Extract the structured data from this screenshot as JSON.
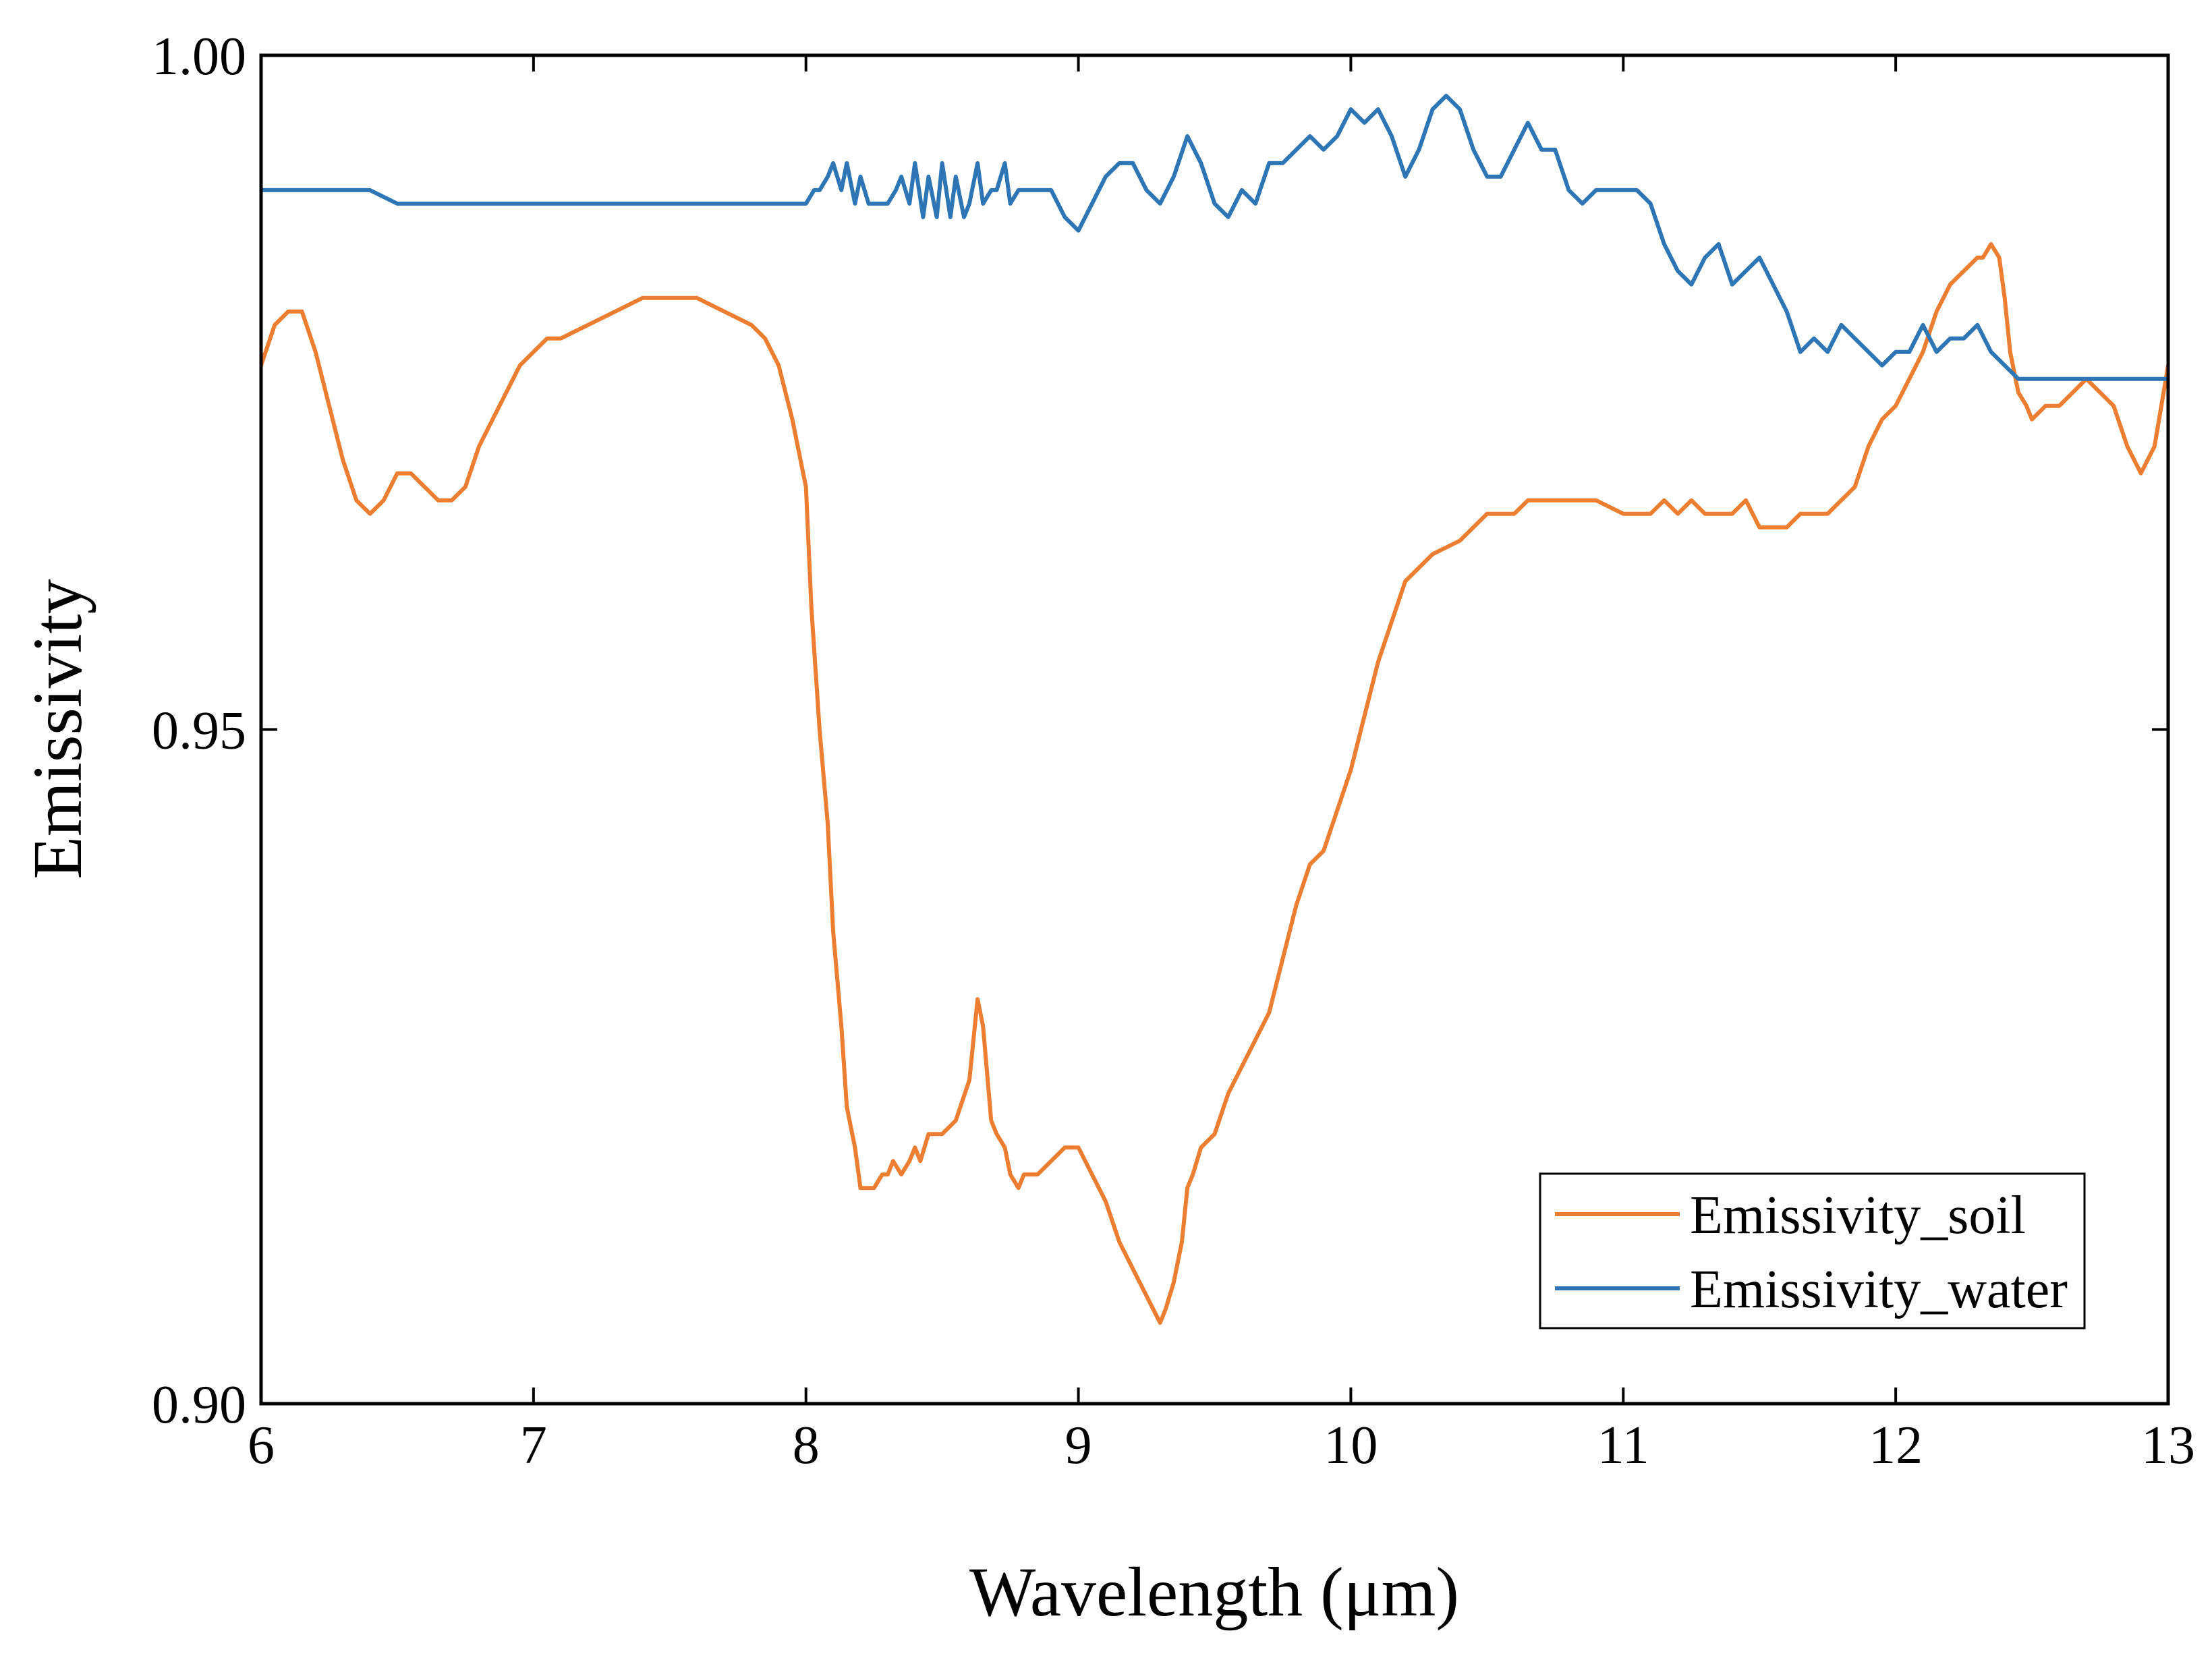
{
  "chart_data": {
    "type": "line",
    "title": "",
    "xlabel": "Wavelength (μm)",
    "ylabel": "Emissivity",
    "xlim": [
      6,
      13
    ],
    "ylim": [
      0.9,
      1.0
    ],
    "xticks": [
      6,
      7,
      8,
      9,
      10,
      11,
      12,
      13
    ],
    "xtick_labels": [
      "6",
      "7",
      "8",
      "9",
      "10",
      "11",
      "12",
      "13"
    ],
    "yticks": [
      0.9,
      0.95,
      1.0
    ],
    "ytick_labels": [
      "0.90",
      "0.95",
      "1.00"
    ],
    "grid": false,
    "legend_position": "bottom-right",
    "series": [
      {
        "name": "Emissivity_soil",
        "color": "#ED7D31",
        "x": [
          6.0,
          6.05,
          6.1,
          6.15,
          6.2,
          6.25,
          6.3,
          6.35,
          6.4,
          6.45,
          6.5,
          6.55,
          6.6,
          6.65,
          6.7,
          6.75,
          6.8,
          6.85,
          6.9,
          6.95,
          7.0,
          7.05,
          7.1,
          7.2,
          7.3,
          7.4,
          7.5,
          7.6,
          7.7,
          7.8,
          7.85,
          7.9,
          7.95,
          8.0,
          8.02,
          8.05,
          8.08,
          8.1,
          8.13,
          8.15,
          8.18,
          8.2,
          8.22,
          8.25,
          8.28,
          8.3,
          8.32,
          8.35,
          8.38,
          8.4,
          8.42,
          8.45,
          8.5,
          8.55,
          8.6,
          8.63,
          8.65,
          8.68,
          8.7,
          8.73,
          8.75,
          8.78,
          8.8,
          8.83,
          8.85,
          8.9,
          8.95,
          9.0,
          9.05,
          9.1,
          9.15,
          9.2,
          9.25,
          9.3,
          9.32,
          9.35,
          9.38,
          9.4,
          9.42,
          9.45,
          9.5,
          9.55,
          9.6,
          9.65,
          9.7,
          9.75,
          9.8,
          9.85,
          9.9,
          9.95,
          10.0,
          10.05,
          10.1,
          10.15,
          10.2,
          10.25,
          10.3,
          10.4,
          10.5,
          10.6,
          10.65,
          10.7,
          10.8,
          10.9,
          11.0,
          11.1,
          11.15,
          11.2,
          11.25,
          11.3,
          11.35,
          11.4,
          11.45,
          11.5,
          11.55,
          11.6,
          11.65,
          11.7,
          11.75,
          11.8,
          11.85,
          11.9,
          11.95,
          12.0,
          12.05,
          12.1,
          12.15,
          12.2,
          12.25,
          12.3,
          12.32,
          12.35,
          12.38,
          12.4,
          12.42,
          12.45,
          12.48,
          12.5,
          12.55,
          12.6,
          12.65,
          12.7,
          12.75,
          12.8,
          12.85,
          12.9,
          12.95,
          13.0
        ],
        "values": [
          0.977,
          0.98,
          0.981,
          0.981,
          0.978,
          0.974,
          0.97,
          0.967,
          0.966,
          0.967,
          0.969,
          0.969,
          0.968,
          0.967,
          0.967,
          0.968,
          0.971,
          0.973,
          0.975,
          0.977,
          0.978,
          0.979,
          0.979,
          0.98,
          0.981,
          0.982,
          0.982,
          0.982,
          0.981,
          0.98,
          0.979,
          0.977,
          0.973,
          0.968,
          0.959,
          0.95,
          0.943,
          0.935,
          0.928,
          0.922,
          0.919,
          0.916,
          0.916,
          0.916,
          0.917,
          0.917,
          0.918,
          0.917,
          0.918,
          0.919,
          0.918,
          0.92,
          0.92,
          0.921,
          0.924,
          0.93,
          0.928,
          0.921,
          0.92,
          0.919,
          0.917,
          0.916,
          0.917,
          0.917,
          0.917,
          0.918,
          0.919,
          0.919,
          0.917,
          0.915,
          0.912,
          0.91,
          0.908,
          0.906,
          0.907,
          0.909,
          0.912,
          0.916,
          0.917,
          0.919,
          0.92,
          0.923,
          0.925,
          0.927,
          0.929,
          0.933,
          0.937,
          0.94,
          0.941,
          0.944,
          0.947,
          0.951,
          0.955,
          0.958,
          0.961,
          0.962,
          0.963,
          0.964,
          0.966,
          0.966,
          0.967,
          0.967,
          0.967,
          0.967,
          0.966,
          0.966,
          0.967,
          0.966,
          0.967,
          0.966,
          0.966,
          0.966,
          0.967,
          0.965,
          0.965,
          0.965,
          0.966,
          0.966,
          0.966,
          0.967,
          0.968,
          0.971,
          0.973,
          0.974,
          0.976,
          0.978,
          0.981,
          0.983,
          0.984,
          0.985,
          0.985,
          0.986,
          0.985,
          0.982,
          0.978,
          0.975,
          0.974,
          0.973,
          0.974,
          0.974,
          0.975,
          0.976,
          0.975,
          0.974,
          0.971,
          0.969,
          0.971,
          0.977
        ],
        "values_note": "digitized"
      },
      {
        "name": "Emissivity_water",
        "color": "#2E75B6",
        "x": [
          6.0,
          6.1,
          6.2,
          6.3,
          6.4,
          6.5,
          6.6,
          6.7,
          6.8,
          6.9,
          7.0,
          7.1,
          7.2,
          7.3,
          7.4,
          7.5,
          7.6,
          7.7,
          7.8,
          7.9,
          8.0,
          8.03,
          8.05,
          8.08,
          8.1,
          8.13,
          8.15,
          8.18,
          8.2,
          8.23,
          8.25,
          8.28,
          8.3,
          8.33,
          8.35,
          8.38,
          8.4,
          8.43,
          8.45,
          8.48,
          8.5,
          8.53,
          8.55,
          8.58,
          8.6,
          8.63,
          8.65,
          8.68,
          8.7,
          8.73,
          8.75,
          8.78,
          8.8,
          8.85,
          8.9,
          8.95,
          9.0,
          9.05,
          9.1,
          9.15,
          9.2,
          9.25,
          9.3,
          9.35,
          9.4,
          9.45,
          9.5,
          9.55,
          9.6,
          9.65,
          9.7,
          9.75,
          9.8,
          9.85,
          9.9,
          9.95,
          10.0,
          10.05,
          10.1,
          10.15,
          10.2,
          10.25,
          10.3,
          10.35,
          10.4,
          10.45,
          10.5,
          10.55,
          10.6,
          10.65,
          10.7,
          10.75,
          10.8,
          10.85,
          10.9,
          10.95,
          11.0,
          11.05,
          11.1,
          11.15,
          11.2,
          11.25,
          11.3,
          11.35,
          11.4,
          11.45,
          11.5,
          11.55,
          11.6,
          11.65,
          11.7,
          11.75,
          11.8,
          11.85,
          11.9,
          11.95,
          12.0,
          12.05,
          12.1,
          12.15,
          12.2,
          12.25,
          12.3,
          12.35,
          12.4,
          12.45,
          12.5,
          12.6,
          12.7,
          12.8,
          12.9,
          13.0
        ],
        "values": [
          0.99,
          0.99,
          0.99,
          0.99,
          0.99,
          0.989,
          0.989,
          0.989,
          0.989,
          0.989,
          0.989,
          0.989,
          0.989,
          0.989,
          0.989,
          0.989,
          0.989,
          0.989,
          0.989,
          0.989,
          0.989,
          0.99,
          0.99,
          0.991,
          0.992,
          0.99,
          0.992,
          0.989,
          0.991,
          0.989,
          0.989,
          0.989,
          0.989,
          0.99,
          0.991,
          0.989,
          0.992,
          0.988,
          0.991,
          0.988,
          0.992,
          0.988,
          0.991,
          0.988,
          0.989,
          0.992,
          0.989,
          0.99,
          0.99,
          0.992,
          0.989,
          0.99,
          0.99,
          0.99,
          0.99,
          0.988,
          0.987,
          0.989,
          0.991,
          0.992,
          0.992,
          0.99,
          0.989,
          0.991,
          0.994,
          0.992,
          0.989,
          0.988,
          0.99,
          0.989,
          0.992,
          0.992,
          0.993,
          0.994,
          0.993,
          0.994,
          0.996,
          0.995,
          0.996,
          0.994,
          0.991,
          0.993,
          0.996,
          0.997,
          0.996,
          0.993,
          0.991,
          0.991,
          0.993,
          0.995,
          0.993,
          0.993,
          0.99,
          0.989,
          0.99,
          0.99,
          0.99,
          0.99,
          0.989,
          0.986,
          0.984,
          0.983,
          0.985,
          0.986,
          0.983,
          0.984,
          0.985,
          0.983,
          0.981,
          0.978,
          0.979,
          0.978,
          0.98,
          0.979,
          0.978,
          0.977,
          0.978,
          0.978,
          0.98,
          0.978,
          0.979,
          0.979,
          0.98,
          0.978,
          0.977,
          0.976,
          0.976,
          0.976,
          0.976,
          0.976,
          0.976,
          0.976
        ],
        "values_note": "digitized"
      }
    ]
  }
}
